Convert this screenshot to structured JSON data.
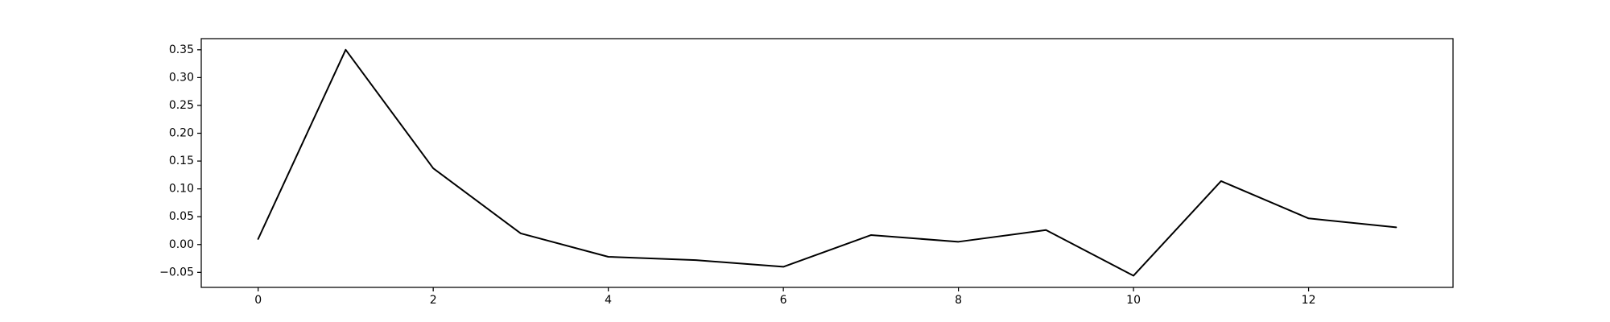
{
  "chart_data": {
    "type": "line",
    "title": "",
    "xlabel": "",
    "ylabel": "",
    "xlim": [
      -0.65,
      13.65
    ],
    "ylim": [
      -0.077,
      0.37
    ],
    "grid": false,
    "legend": "none",
    "x_ticks": [
      0,
      2,
      4,
      6,
      8,
      10,
      12
    ],
    "x_tick_labels": [
      "0",
      "2",
      "4",
      "6",
      "8",
      "10",
      "12"
    ],
    "y_ticks": [
      -0.05,
      0.0,
      0.05,
      0.1,
      0.15,
      0.2,
      0.25,
      0.3,
      0.35
    ],
    "y_tick_labels": [
      "−0.05",
      "0.00",
      "0.05",
      "0.10",
      "0.15",
      "0.20",
      "0.25",
      "0.30",
      "0.35"
    ],
    "series": [
      {
        "color": "#000000",
        "x": [
          0,
          1,
          2,
          3,
          4,
          5,
          6,
          7,
          8,
          9,
          10,
          11,
          12,
          13
        ],
        "y": [
          0.01,
          0.35,
          0.137,
          0.02,
          -0.022,
          -0.028,
          -0.04,
          0.017,
          0.005,
          0.026,
          -0.056,
          0.114,
          0.047,
          0.031
        ]
      }
    ]
  }
}
